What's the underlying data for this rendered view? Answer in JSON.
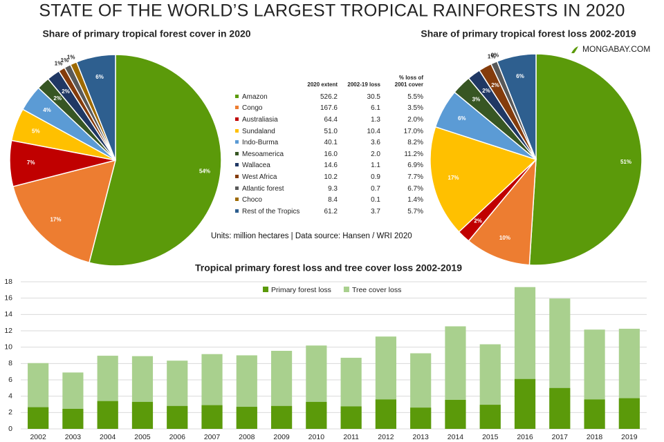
{
  "title": "STATE OF THE WORLD’S LARGEST TROPICAL RAINFORESTS IN 2020",
  "brand": "MONGABAY.COM",
  "chart_data": [
    {
      "type": "pie",
      "title": "Share of primary tropical forest cover in 2020",
      "categories": [
        "Amazon",
        "Congo",
        "Australiasia",
        "Sundaland",
        "Indo-Burma",
        "Mesoamerica",
        "Wallacea",
        "West Africa",
        "Atlantic forest",
        "Choco",
        "Rest of the Tropics"
      ],
      "values": [
        54,
        17,
        7,
        5,
        4,
        2,
        2,
        1,
        1,
        1,
        6
      ],
      "value_labels": [
        "54%",
        "17%",
        "7%",
        "5%",
        "4%",
        "2%",
        "2%",
        "1%",
        "1%",
        "1%",
        "6%"
      ],
      "colors": [
        "#5b9a0a",
        "#ed7d31",
        "#c00000",
        "#ffc000",
        "#5b9bd5",
        "#375623",
        "#203864",
        "#843c0c",
        "#595959",
        "#9e6a00",
        "#2e5f8f"
      ]
    },
    {
      "type": "pie",
      "title": "Share of primary tropical forest loss 2002-2019",
      "categories": [
        "Amazon",
        "Congo",
        "Australiasia",
        "Sundaland",
        "Indo-Burma",
        "Mesoamerica",
        "Wallacea",
        "West Africa",
        "Atlantic forest",
        "Choco",
        "Rest of the Tropics"
      ],
      "values": [
        51,
        10,
        2,
        17,
        6,
        3,
        2,
        2,
        1,
        0,
        6
      ],
      "value_labels": [
        "51%",
        "10%",
        "2%",
        "17%",
        "6%",
        "3%",
        "2%",
        "2%",
        "1%",
        "0%",
        "6%"
      ],
      "colors": [
        "#5b9a0a",
        "#ed7d31",
        "#c00000",
        "#ffc000",
        "#5b9bd5",
        "#375623",
        "#203864",
        "#843c0c",
        "#595959",
        "#9e6a00",
        "#2e5f8f"
      ]
    },
    {
      "type": "bar",
      "title": "Tropical primary forest loss and tree cover loss 2002-2019",
      "categories": [
        "2002",
        "2003",
        "2004",
        "2005",
        "2006",
        "2007",
        "2008",
        "2009",
        "2010",
        "2011",
        "2012",
        "2013",
        "2014",
        "2015",
        "2016",
        "2017",
        "2018",
        "2019"
      ],
      "series": [
        {
          "name": "Primary forest loss",
          "color": "#5b9a0a",
          "values": [
            2.65,
            2.45,
            3.4,
            3.3,
            2.8,
            2.9,
            2.7,
            2.8,
            3.3,
            2.75,
            3.6,
            2.6,
            3.55,
            2.95,
            6.1,
            5.0,
            3.6,
            3.75
          ]
        },
        {
          "name": "Tree cover loss",
          "color": "#a9d08e",
          "values": [
            8.05,
            6.9,
            8.95,
            8.9,
            8.35,
            9.15,
            9.0,
            9.55,
            10.2,
            8.7,
            11.3,
            9.25,
            12.55,
            10.35,
            17.35,
            15.95,
            12.15,
            12.25
          ]
        }
      ],
      "ylim": [
        0,
        18
      ],
      "yticks": [
        0,
        2,
        4,
        6,
        8,
        10,
        12,
        14,
        16,
        18
      ],
      "grid": true,
      "legend": "top"
    }
  ],
  "table": {
    "columns": [
      "2020 extent",
      "2002-19 loss",
      "% loss of 2001 cover"
    ],
    "rows": [
      [
        "526.2",
        "30.5",
        "5.5%"
      ],
      [
        "167.6",
        "6.1",
        "3.5%"
      ],
      [
        "64.4",
        "1.3",
        "2.0%"
      ],
      [
        "51.0",
        "10.4",
        "17.0%"
      ],
      [
        "40.1",
        "3.6",
        "8.2%"
      ],
      [
        "16.0",
        "2.0",
        "11.2%"
      ],
      [
        "14.6",
        "1.1",
        "6.9%"
      ],
      [
        "10.2",
        "0.9",
        "7.7%"
      ],
      [
        "9.3",
        "0.7",
        "6.7%"
      ],
      [
        "8.4",
        "0.1",
        "1.4%"
      ],
      [
        "61.2",
        "3.7",
        "5.7%"
      ]
    ],
    "note": "Units: million hectares | Data source: Hansen / WRI 2020"
  }
}
